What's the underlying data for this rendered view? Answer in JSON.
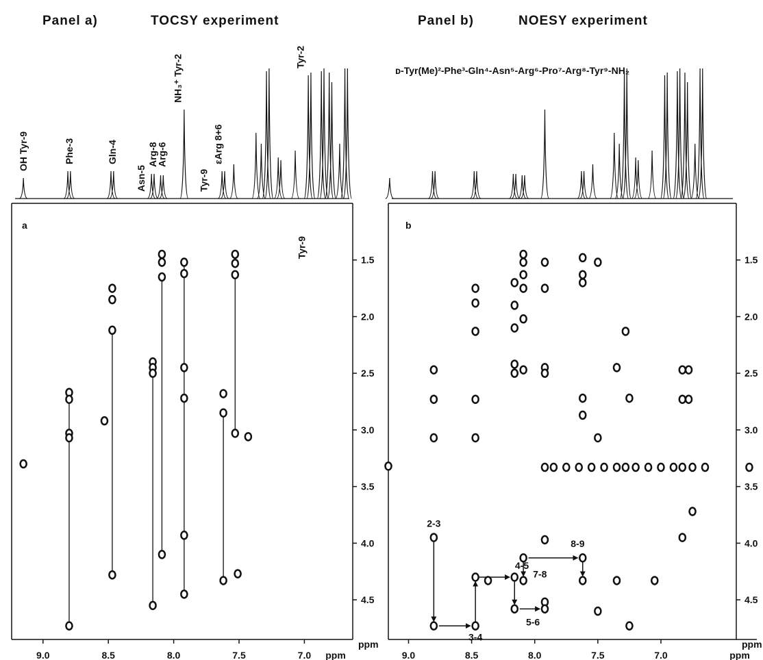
{
  "chart_data": [
    {
      "type": "scatter",
      "panel": "Panel a)",
      "title": "TOCSY experiment",
      "panel_label": "a",
      "x_label": "ppm",
      "y_label": "ppm",
      "xlim": [
        9.24,
        6.63
      ],
      "ylim": [
        1.0,
        4.85
      ],
      "xticks": [
        {
          "value": 9,
          "label": "9.0"
        },
        8.5,
        {
          "value": 8,
          "label": "8.0"
        },
        7.5,
        {
          "value": 7,
          "label": "7.0"
        }
      ],
      "yticks": [
        1.5,
        {
          "value": 2,
          "label": "2.0"
        },
        2.5,
        {
          "value": 3,
          "label": "3.0"
        },
        3.5,
        {
          "value": 4,
          "label": "4.0"
        },
        4.5
      ],
      "color": "#111111",
      "x": [
        9.15,
        8.8,
        8.8,
        8.8,
        8.8,
        8.8,
        8.47,
        8.47,
        8.47,
        8.47,
        8.53,
        8.16,
        8.16,
        8.16,
        8.16,
        8.09,
        8.09,
        8.09,
        8.09,
        7.92,
        7.92,
        7.92,
        7.92,
        7.92,
        7.92,
        7.62,
        7.62,
        7.62,
        7.53,
        7.53,
        7.53,
        7.53,
        7.43,
        7.51
      ],
      "y": [
        3.3,
        2.67,
        2.73,
        3.03,
        3.07,
        4.73,
        1.75,
        1.85,
        2.12,
        4.28,
        2.92,
        2.4,
        2.45,
        2.5,
        4.55,
        1.45,
        1.52,
        1.65,
        4.1,
        1.52,
        1.62,
        2.45,
        2.72,
        3.93,
        4.45,
        2.68,
        2.85,
        4.33,
        1.45,
        1.53,
        1.63,
        3.03,
        3.06,
        4.27
      ],
      "connections": [
        {
          "x": 8.8,
          "y": [
            2.7,
            4.73
          ]
        },
        {
          "x": 8.47,
          "y": [
            2.12,
            4.28
          ]
        },
        {
          "x": 8.16,
          "y": [
            2.45,
            4.55
          ]
        },
        {
          "x": 8.09,
          "y": [
            1.65,
            4.1
          ]
        },
        {
          "x": 7.92,
          "y": [
            1.52,
            4.45
          ]
        },
        {
          "x": 7.62,
          "y": [
            2.85,
            4.33
          ]
        },
        {
          "x": 7.53,
          "y": [
            1.63,
            3.03
          ]
        }
      ],
      "annotations": [
        {
          "text": "OH Tyr-9",
          "x": 9.15
        },
        {
          "text": "Phe-3",
          "x": 8.8
        },
        {
          "text": "Gln-4",
          "x": 8.47
        },
        {
          "text": "Asn-5",
          "x": 8.25
        },
        {
          "text": "Arg-8",
          "x": 8.16
        },
        {
          "text": "Arg-6",
          "x": 8.09
        },
        {
          "text": "NH₃⁺ Tyr-2",
          "x": 7.97
        },
        {
          "text": "Tyr-9",
          "x": 7.77
        },
        {
          "text": "εArg 8+6",
          "x": 7.66
        },
        {
          "text": "Tyr-2",
          "x": 7.03
        },
        {
          "text": "Tyr-9",
          "x": 7.02
        }
      ],
      "spectrum": {
        "x": [
          9.15,
          8.81,
          8.79,
          8.48,
          8.46,
          8.17,
          8.15,
          8.1,
          8.08,
          7.92,
          7.63,
          7.61,
          7.54,
          7.37,
          7.33,
          7.29,
          7.27,
          7.2,
          7.18,
          7.07,
          6.97,
          6.95,
          6.87,
          6.85,
          6.81,
          6.79,
          6.73,
          6.69,
          6.67
        ],
        "values": [
          15,
          20,
          20,
          20,
          20,
          18,
          18,
          17,
          17,
          65,
          20,
          20,
          25,
          48,
          40,
          93,
          95,
          30,
          28,
          35,
          90,
          92,
          93,
          95,
          92,
          85,
          40,
          95,
          95
        ]
      }
    },
    {
      "type": "scatter",
      "panel": "Panel b)",
      "title": "NOESY experiment",
      "panel_label": "b",
      "subtitle": "ᴅ-Tyr(Me)²-Phe³-Gln⁴-Asn⁵-Arg⁶-Pro⁷-Arg⁸-Tyr⁹-NH₂",
      "x_label": "ppm",
      "y_label": "ppm",
      "xlim": [
        9.16,
        6.24
      ],
      "ylim": [
        1.0,
        4.85
      ],
      "xticks": [
        {
          "value": 9,
          "label": "9.0"
        },
        8.5,
        {
          "value": 8,
          "label": "8.0"
        },
        7.5,
        {
          "value": 7,
          "label": "7.0"
        }
      ],
      "yticks": [
        1.5,
        {
          "value": 2,
          "label": "2.0"
        },
        2.5,
        {
          "value": 3,
          "label": "3.0"
        },
        3.5,
        {
          "value": 4,
          "label": "4.0"
        },
        4.5
      ],
      "color": "#111111",
      "x": [
        9.16,
        8.8,
        8.8,
        8.8,
        8.8,
        8.8,
        8.47,
        8.47,
        8.47,
        8.47,
        8.47,
        8.47,
        8.47,
        8.37,
        8.16,
        8.16,
        8.16,
        8.16,
        8.16,
        8.16,
        8.16,
        8.09,
        8.09,
        8.09,
        8.09,
        8.09,
        8.09,
        8.09,
        8.09,
        7.92,
        7.92,
        7.92,
        7.92,
        7.92,
        7.92,
        7.92,
        7.92,
        7.62,
        7.62,
        7.62,
        7.62,
        7.62,
        7.62,
        7.62,
        7.5,
        7.5,
        7.5,
        7.35,
        7.35,
        7.28,
        7.25,
        7.25,
        7.05,
        6.83,
        6.83,
        6.83,
        6.78,
        6.78,
        6.75,
        7.85,
        7.75,
        7.65,
        7.55,
        7.45,
        7.35,
        7.28,
        7.2,
        7.1,
        7.0,
        6.9,
        6.83,
        6.75,
        6.65,
        6.3
      ],
      "y": [
        3.32,
        2.47,
        2.73,
        3.07,
        3.95,
        4.73,
        1.75,
        1.88,
        2.13,
        2.73,
        3.07,
        4.3,
        4.73,
        4.33,
        1.7,
        1.9,
        2.1,
        2.42,
        2.5,
        4.3,
        4.58,
        1.45,
        1.52,
        1.63,
        1.75,
        2.02,
        2.47,
        4.13,
        4.33,
        1.52,
        1.75,
        2.45,
        2.5,
        3.33,
        3.97,
        4.52,
        4.58,
        1.48,
        1.63,
        1.7,
        2.72,
        2.87,
        4.13,
        4.33,
        1.52,
        3.07,
        4.6,
        2.45,
        4.33,
        2.13,
        2.72,
        4.73,
        4.33,
        2.47,
        2.73,
        3.95,
        2.47,
        2.73,
        3.72,
        3.33,
        3.33,
        3.33,
        3.33,
        3.33,
        3.33,
        3.33,
        3.33,
        3.33,
        3.33,
        3.33,
        3.33,
        3.33,
        3.33,
        3.33
      ],
      "arrows": [
        {
          "x": [
            8.8,
            8.8
          ],
          "y": [
            3.99,
            4.69
          ],
          "label": "2-3"
        },
        {
          "x": [
            8.76,
            8.51
          ],
          "y": [
            4.73,
            4.73
          ]
        },
        {
          "x": [
            8.47,
            8.47
          ],
          "y": [
            4.69,
            4.34
          ],
          "label": "3-4"
        },
        {
          "x": [
            8.44,
            8.2
          ],
          "y": [
            4.3,
            4.3
          ],
          "label": "4-5"
        },
        {
          "x": [
            8.16,
            8.16
          ],
          "y": [
            4.34,
            4.54
          ]
        },
        {
          "x": [
            8.12,
            7.96
          ],
          "y": [
            4.58,
            4.58
          ],
          "label": "5-6"
        },
        {
          "x": [
            8.09,
            8.09
          ],
          "y": [
            4.17,
            4.29
          ],
          "label": "7-8"
        },
        {
          "x": [
            8.05,
            7.66
          ],
          "y": [
            4.13,
            4.13
          ],
          "label": "8-9"
        },
        {
          "x": [
            7.62,
            7.62
          ],
          "y": [
            4.17,
            4.29
          ]
        }
      ],
      "spectrum": {
        "x": [
          9.15,
          8.81,
          8.79,
          8.48,
          8.46,
          8.17,
          8.15,
          8.1,
          8.08,
          7.92,
          7.63,
          7.61,
          7.54,
          7.37,
          7.33,
          7.29,
          7.27,
          7.2,
          7.18,
          7.07,
          6.97,
          6.95,
          6.87,
          6.85,
          6.81,
          6.79,
          6.73,
          6.69,
          6.67
        ],
        "values": [
          15,
          20,
          20,
          20,
          20,
          18,
          18,
          17,
          17,
          65,
          20,
          20,
          25,
          48,
          40,
          93,
          95,
          30,
          28,
          35,
          90,
          92,
          93,
          95,
          92,
          85,
          40,
          95,
          95
        ]
      }
    }
  ]
}
